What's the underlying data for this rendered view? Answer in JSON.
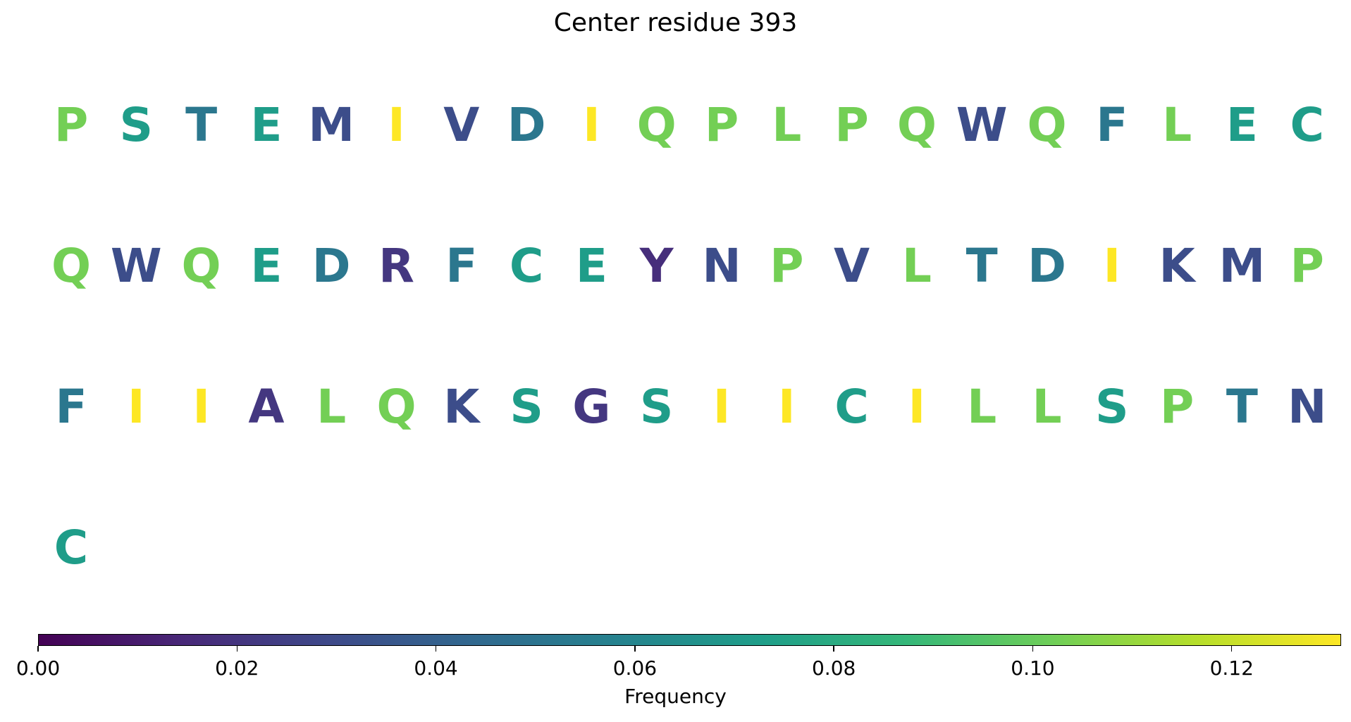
{
  "chart_data": {
    "type": "heatmap",
    "title": "Center residue 393",
    "letters_per_row": 20,
    "residues": [
      {
        "aa": "P",
        "freq": 0.103
      },
      {
        "aa": "S",
        "freq": 0.072
      },
      {
        "aa": "T",
        "freq": 0.052
      },
      {
        "aa": "E",
        "freq": 0.072
      },
      {
        "aa": "M",
        "freq": 0.031
      },
      {
        "aa": "I",
        "freq": 0.131
      },
      {
        "aa": "V",
        "freq": 0.031
      },
      {
        "aa": "D",
        "freq": 0.052
      },
      {
        "aa": "I",
        "freq": 0.131
      },
      {
        "aa": "Q",
        "freq": 0.103
      },
      {
        "aa": "P",
        "freq": 0.103
      },
      {
        "aa": "L",
        "freq": 0.103
      },
      {
        "aa": "P",
        "freq": 0.103
      },
      {
        "aa": "Q",
        "freq": 0.103
      },
      {
        "aa": "W",
        "freq": 0.031
      },
      {
        "aa": "Q",
        "freq": 0.103
      },
      {
        "aa": "F",
        "freq": 0.052
      },
      {
        "aa": "L",
        "freq": 0.103
      },
      {
        "aa": "E",
        "freq": 0.072
      },
      {
        "aa": "C",
        "freq": 0.072
      },
      {
        "aa": "Q",
        "freq": 0.103
      },
      {
        "aa": "W",
        "freq": 0.031
      },
      {
        "aa": "Q",
        "freq": 0.103
      },
      {
        "aa": "E",
        "freq": 0.072
      },
      {
        "aa": "D",
        "freq": 0.052
      },
      {
        "aa": "R",
        "freq": 0.021
      },
      {
        "aa": "F",
        "freq": 0.052
      },
      {
        "aa": "C",
        "freq": 0.072
      },
      {
        "aa": "E",
        "freq": 0.072
      },
      {
        "aa": "Y",
        "freq": 0.017
      },
      {
        "aa": "N",
        "freq": 0.031
      },
      {
        "aa": "P",
        "freq": 0.103
      },
      {
        "aa": "V",
        "freq": 0.031
      },
      {
        "aa": "L",
        "freq": 0.103
      },
      {
        "aa": "T",
        "freq": 0.052
      },
      {
        "aa": "D",
        "freq": 0.052
      },
      {
        "aa": "I",
        "freq": 0.131
      },
      {
        "aa": "K",
        "freq": 0.031
      },
      {
        "aa": "M",
        "freq": 0.031
      },
      {
        "aa": "P",
        "freq": 0.103
      },
      {
        "aa": "F",
        "freq": 0.052
      },
      {
        "aa": "I",
        "freq": 0.131
      },
      {
        "aa": "I",
        "freq": 0.131
      },
      {
        "aa": "A",
        "freq": 0.021
      },
      {
        "aa": "L",
        "freq": 0.103
      },
      {
        "aa": "Q",
        "freq": 0.103
      },
      {
        "aa": "K",
        "freq": 0.031
      },
      {
        "aa": "S",
        "freq": 0.072
      },
      {
        "aa": "G",
        "freq": 0.021
      },
      {
        "aa": "S",
        "freq": 0.072
      },
      {
        "aa": "I",
        "freq": 0.131
      },
      {
        "aa": "I",
        "freq": 0.131
      },
      {
        "aa": "C",
        "freq": 0.072
      },
      {
        "aa": "I",
        "freq": 0.131
      },
      {
        "aa": "L",
        "freq": 0.103
      },
      {
        "aa": "L",
        "freq": 0.103
      },
      {
        "aa": "S",
        "freq": 0.072
      },
      {
        "aa": "P",
        "freq": 0.103
      },
      {
        "aa": "T",
        "freq": 0.052
      },
      {
        "aa": "N",
        "freq": 0.031
      },
      {
        "aa": "C",
        "freq": 0.072
      }
    ],
    "colorbar": {
      "colormap": "viridis",
      "label": "Frequency",
      "range": [
        0.0,
        0.131
      ],
      "ticks": [
        0.0,
        0.02,
        0.04,
        0.06,
        0.08,
        0.1,
        0.12
      ],
      "tick_labels": [
        "0.00",
        "0.02",
        "0.04",
        "0.06",
        "0.08",
        "0.10",
        "0.12"
      ],
      "orientation": "horizontal"
    }
  }
}
